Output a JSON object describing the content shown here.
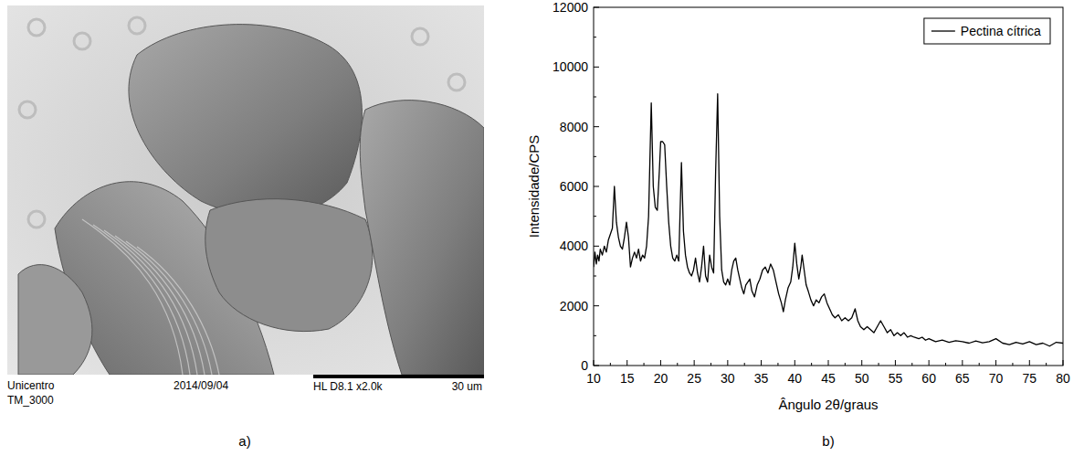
{
  "micrograph": {
    "panel_label": "a)",
    "institution": "Unicentro",
    "instrument": "TM_3000",
    "date": "2014/09/04",
    "settings": "HL D8.1 x2.0k",
    "scale_bar": "30 um"
  },
  "chart_data": {
    "type": "line",
    "panel_label": "b)",
    "x_label": "Ângulo 2θ/graus",
    "y_label": "Intensidade/CPS",
    "x": [
      10,
      10.2,
      10.4,
      10.6,
      10.8,
      11,
      11.3,
      11.6,
      11.9,
      12.2,
      12.5,
      12.8,
      13.1,
      13.4,
      13.7,
      14,
      14.3,
      14.6,
      14.9,
      15.2,
      15.5,
      15.8,
      16.1,
      16.4,
      16.7,
      17,
      17.3,
      17.6,
      17.9,
      18.2,
      18.6,
      18.9,
      19.2,
      19.5,
      19.8,
      20.0,
      20.3,
      20.6,
      20.9,
      21.2,
      21.5,
      21.8,
      22.1,
      22.4,
      22.7,
      23.1,
      23.4,
      23.7,
      24.0,
      24.3,
      24.6,
      24.9,
      25.2,
      25.5,
      25.8,
      26.1,
      26.4,
      26.7,
      27.0,
      27.3,
      27.6,
      27.9,
      28.2,
      28.5,
      28.8,
      29.1,
      29.4,
      29.7,
      30.0,
      30.3,
      30.6,
      30.9,
      31.2,
      31.5,
      31.8,
      32.1,
      32.4,
      32.7,
      33.0,
      33.3,
      33.6,
      34.0,
      34.4,
      34.8,
      35.2,
      35.6,
      36.0,
      36.4,
      36.8,
      37.2,
      37.6,
      38.0,
      38.3,
      38.6,
      39.0,
      39.4,
      39.7,
      40.0,
      40.3,
      40.6,
      40.9,
      41.1,
      41.4,
      41.7,
      42.0,
      42.4,
      42.8,
      43.2,
      43.6,
      44.0,
      44.4,
      44.8,
      45.2,
      45.6,
      46.0,
      46.5,
      47.0,
      47.5,
      48.0,
      48.5,
      49.0,
      49.4,
      49.8,
      50.3,
      50.8,
      51.3,
      51.8,
      52.3,
      52.8,
      53.3,
      53.8,
      54.3,
      54.8,
      55.3,
      55.8,
      56.3,
      56.8,
      57.3,
      57.8,
      58.5,
      59.0,
      59.5,
      60.0,
      61.0,
      62.0,
      63.0,
      64.0,
      65.0,
      66.0,
      67.0,
      68.0,
      69.0,
      70.0,
      71.0,
      72.0,
      73.0,
      74.0,
      75.0,
      76.0,
      77.0,
      78.0,
      79.0,
      80.0
    ],
    "series": [
      {
        "name": "Pectina cítrica",
        "color": "#000000",
        "values": [
          3300,
          3800,
          3400,
          3700,
          3500,
          3900,
          3700,
          4000,
          3800,
          4200,
          4400,
          4600,
          6000,
          4800,
          4300,
          4000,
          3900,
          4300,
          4800,
          4300,
          3300,
          3600,
          3800,
          3600,
          3900,
          3500,
          3700,
          3600,
          4000,
          5000,
          8800,
          6000,
          5300,
          5200,
          6500,
          7500,
          7500,
          7400,
          6000,
          4800,
          4000,
          3600,
          3500,
          3700,
          3500,
          6800,
          4500,
          3700,
          3300,
          3100,
          3000,
          3200,
          3600,
          3100,
          2800,
          3300,
          4000,
          3000,
          2800,
          3700,
          3300,
          3100,
          6500,
          9100,
          5000,
          3200,
          2800,
          2700,
          2900,
          2700,
          3200,
          3500,
          3600,
          3200,
          2900,
          2600,
          2400,
          2700,
          2800,
          2900,
          2500,
          2300,
          2700,
          2900,
          3200,
          3300,
          3100,
          3400,
          3200,
          2800,
          2400,
          2100,
          1800,
          2200,
          2600,
          2800,
          3300,
          4100,
          3400,
          2900,
          3300,
          3700,
          3200,
          2700,
          2500,
          2200,
          2000,
          2200,
          2100,
          2300,
          2400,
          2100,
          1900,
          1700,
          1600,
          1700,
          1500,
          1600,
          1500,
          1600,
          1900,
          1500,
          1300,
          1200,
          1300,
          1200,
          1100,
          1300,
          1500,
          1300,
          1100,
          1200,
          1000,
          1100,
          1000,
          1100,
          950,
          1000,
          950,
          900,
          950,
          850,
          900,
          800,
          850,
          780,
          830,
          800,
          750,
          820,
          760,
          800,
          900,
          750,
          700,
          780,
          720,
          800,
          700,
          750,
          650,
          780,
          750
        ]
      }
    ],
    "xlim": [
      10,
      80
    ],
    "xticks": [
      10,
      15,
      20,
      25,
      30,
      35,
      40,
      45,
      50,
      55,
      60,
      65,
      70,
      75,
      80
    ],
    "ylim": [
      0,
      12000
    ],
    "yticks": [
      0,
      2000,
      4000,
      6000,
      8000,
      10000,
      12000
    ],
    "legend": "upper right",
    "grid": false
  }
}
